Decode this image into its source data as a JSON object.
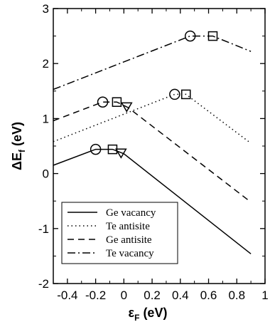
{
  "chart_data": {
    "type": "line",
    "xlabel": {
      "main": "ε",
      "sub": "F",
      "tail": " (eV)"
    },
    "ylabel": {
      "main": "ΔE",
      "sub": "f",
      "tail": " (eV)"
    },
    "xlim": [
      -0.5,
      1.0
    ],
    "ylim": [
      -2,
      3
    ],
    "x_ticks": [
      -0.4,
      -0.2,
      0,
      0.2,
      0.4,
      0.6,
      0.8,
      1.0
    ],
    "x_tick_labels": [
      "-0.4",
      "-0.2",
      "0",
      "0.2",
      "0.4",
      "0.6",
      "0.8",
      "1"
    ],
    "y_ticks": [
      -2,
      -1,
      0,
      1,
      2,
      3
    ],
    "y_tick_labels": [
      "-2",
      "-1",
      "0",
      "1",
      "2",
      "3"
    ],
    "grid": false,
    "legend_position": "bottom-left",
    "series": [
      {
        "name": "Ge vacancy",
        "style": "solid",
        "x": [
          -0.5,
          -0.2,
          -0.08,
          0.0,
          0.9
        ],
        "y": [
          0.15,
          0.44,
          0.44,
          0.36,
          -1.46
        ],
        "markers": [
          {
            "shape": "circle",
            "x": -0.2,
            "y": 0.44
          },
          {
            "shape": "square",
            "x": -0.08,
            "y": 0.44
          },
          {
            "shape": "triangle-down",
            "x": -0.02,
            "y": 0.38
          }
        ]
      },
      {
        "name": "Te antisite",
        "style": "dotted",
        "x": [
          -0.5,
          0.36,
          0.44,
          0.9
        ],
        "y": [
          0.58,
          1.44,
          1.44,
          0.55
        ],
        "markers": [
          {
            "shape": "circle",
            "x": 0.36,
            "y": 1.44
          },
          {
            "shape": "square",
            "x": 0.44,
            "y": 1.44
          }
        ]
      },
      {
        "name": "Ge antisite",
        "style": "dashed",
        "x": [
          -0.5,
          -0.15,
          -0.05,
          0.03,
          0.9
        ],
        "y": [
          0.96,
          1.3,
          1.3,
          1.2,
          -0.52
        ],
        "markers": [
          {
            "shape": "circle",
            "x": -0.15,
            "y": 1.3
          },
          {
            "shape": "square",
            "x": -0.05,
            "y": 1.3
          },
          {
            "shape": "triangle-down",
            "x": 0.02,
            "y": 1.22
          }
        ]
      },
      {
        "name": "Te vacancy",
        "style": "dashdot",
        "x": [
          -0.5,
          0.47,
          0.63,
          0.9
        ],
        "y": [
          1.53,
          2.5,
          2.5,
          2.22
        ],
        "markers": [
          {
            "shape": "circle",
            "x": 0.47,
            "y": 2.5
          },
          {
            "shape": "square",
            "x": 0.63,
            "y": 2.5
          }
        ]
      }
    ]
  }
}
